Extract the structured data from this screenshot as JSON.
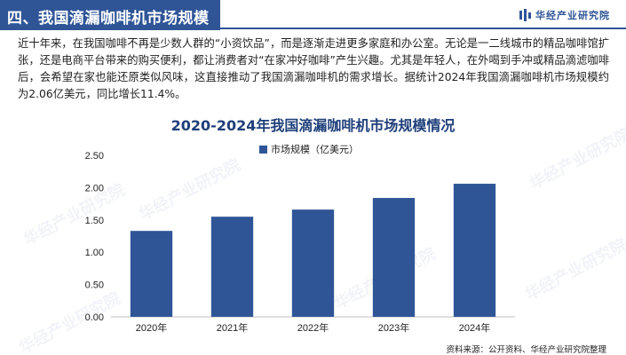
{
  "header": {
    "section_title": "四、我国滴漏咖啡机市场规模",
    "brand_name": "华经产业研究院"
  },
  "intro_text": "近十年来，在我国咖啡不再是少数人群的“小资饮品”，而是逐渐走进更多家庭和办公室。无论是一二线城市的精品咖啡馆扩张，还是电商平台带来的购买便利，都让消费者对“在家冲好咖啡”产生兴趣。尤其是年轻人，在外喝到手冲或精品滴滤咖啡后，会希望在家也能还原类似风味，这直接推动了我国滴漏咖啡机的需求增长。据统计2024年我国滴漏咖啡机市场规模约为2.06亿美元，同比增长11.4%。",
  "watermark_text": "华经产业研究院",
  "source_text": "资料来源：公开资料、华经产业研究院整理",
  "colors": {
    "brand": "#2f5597",
    "bar": "#2f5597",
    "title": "#1f3f7a"
  },
  "chart_data": {
    "type": "bar",
    "title": "2020-2024年我国滴漏咖啡机市场规模情况",
    "categories": [
      "2020年",
      "2021年",
      "2022年",
      "2023年",
      "2024年"
    ],
    "series": [
      {
        "name": "市场规模（亿美元）",
        "values": [
          1.33,
          1.55,
          1.66,
          1.84,
          2.06
        ]
      }
    ],
    "ylim": [
      0,
      2.5
    ],
    "yticks": [
      "0.00",
      "0.50",
      "1.00",
      "1.50",
      "2.00",
      "2.50"
    ],
    "grid": false,
    "legend": "top-center"
  }
}
